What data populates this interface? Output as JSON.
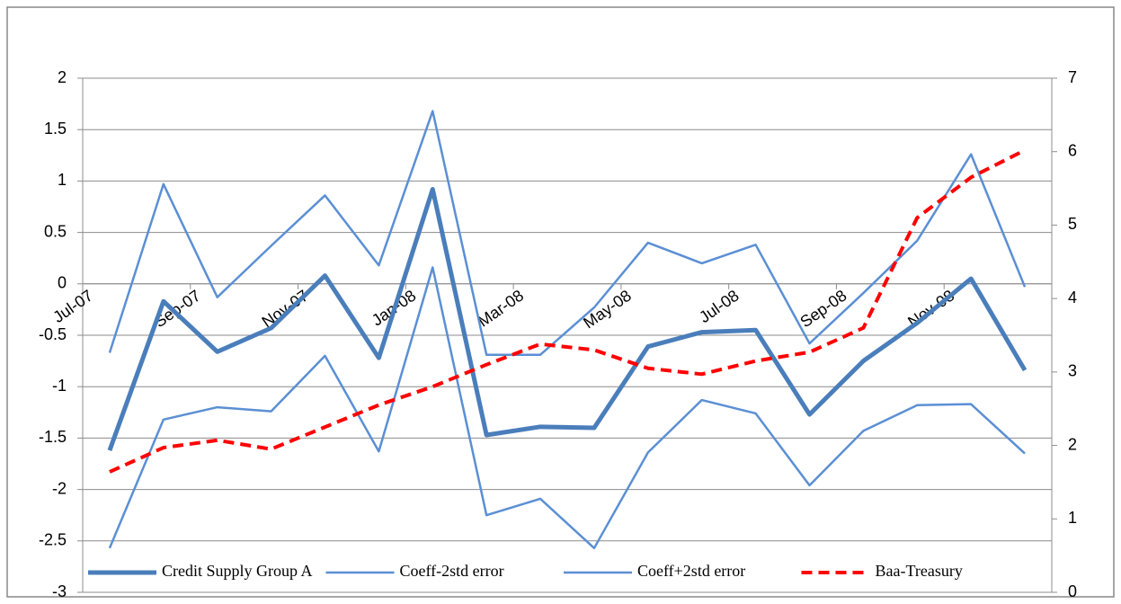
{
  "chart_data": {
    "type": "line",
    "categories": [
      "Jul-07",
      null,
      "Sep-07",
      null,
      "Nov-07",
      null,
      "Jan-08",
      null,
      "Mar-08",
      null,
      "May-08",
      null,
      "Jul-08",
      null,
      "Sep-08",
      null,
      "Nov-08",
      null
    ],
    "series": [
      {
        "name": "Credit Supply Group A",
        "color": "#4a7ebb",
        "width": 5,
        "values": [
          -1.62,
          -0.17,
          -0.66,
          -0.43,
          0.08,
          -0.72,
          0.92,
          -1.47,
          -1.39,
          -1.4,
          -0.61,
          -0.47,
          -0.45,
          -1.27,
          -0.75,
          -0.38,
          0.05,
          -0.84
        ]
      },
      {
        "name": "Coeff-2std error",
        "color": "#5b8fd4",
        "width": 2.5,
        "values": [
          -2.57,
          -1.32,
          -1.2,
          -1.24,
          -0.7,
          -1.63,
          0.16,
          -2.25,
          -2.09,
          -2.57,
          -1.64,
          -1.13,
          -1.26,
          -1.96,
          -1.43,
          -1.18,
          -1.17,
          -1.65
        ]
      },
      {
        "name": "Coeff+2std error",
        "color": "#5b8fd4",
        "width": 2.5,
        "values": [
          -0.67,
          0.97,
          -0.13,
          0.37,
          0.86,
          0.18,
          1.68,
          -0.69,
          -0.69,
          -0.23,
          0.4,
          0.2,
          0.38,
          -0.58,
          -0.09,
          0.42,
          1.26,
          -0.03
        ]
      },
      {
        "name": "Baa-Treasury",
        "color": "#ff0000",
        "width": 4,
        "dashed": true,
        "axis": "y2",
        "values": [
          1.64,
          1.97,
          2.07,
          1.95,
          2.25,
          2.55,
          2.8,
          3.1,
          3.38,
          3.3,
          3.05,
          2.97,
          3.15,
          3.27,
          3.6,
          5.1,
          5.65,
          6.02
        ]
      }
    ],
    "ylim": [
      -3,
      2
    ],
    "yticks": [
      2,
      1.5,
      1,
      0.5,
      0,
      -0.5,
      -1,
      -1.5,
      -2,
      -2.5,
      -3
    ],
    "y2lim": [
      0,
      7
    ],
    "y2ticks": [
      7,
      6,
      5,
      4,
      3,
      2,
      1,
      0
    ],
    "grid": true,
    "legend": "bottom"
  }
}
